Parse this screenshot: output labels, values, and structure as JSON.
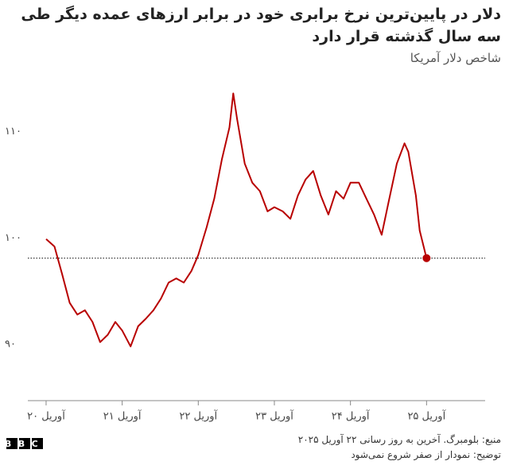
{
  "chart_data": {
    "type": "line",
    "title": "دلار در پایین‌ترین نرخ برابری خود در برابر ارزهای عمده دیگر طی سه سال گذشته قرار دارد",
    "subtitle": "شاخص دلار آمریکا",
    "source": "منبع: بلومبرگ. آخرین به روز رسانی ۲۲ آوریل ۲۰۲۵",
    "note": "توضیح: نمودار از صفر شروع نمی‌شود",
    "logo": "BBC",
    "x": [
      2020.29,
      2020.4,
      2020.5,
      2020.6,
      2020.7,
      2020.8,
      2020.9,
      2021.0,
      2021.1,
      2021.2,
      2021.29,
      2021.4,
      2021.5,
      2021.6,
      2021.7,
      2021.8,
      2021.9,
      2022.0,
      2022.1,
      2022.2,
      2022.29,
      2022.4,
      2022.5,
      2022.6,
      2022.7,
      2022.75,
      2022.8,
      2022.9,
      2023.0,
      2023.1,
      2023.2,
      2023.29,
      2023.4,
      2023.5,
      2023.6,
      2023.7,
      2023.8,
      2023.9,
      2024.0,
      2024.1,
      2024.2,
      2024.29,
      2024.4,
      2024.5,
      2024.6,
      2024.7,
      2024.8,
      2024.9,
      2025.0,
      2025.05,
      2025.15,
      2025.2,
      2025.29
    ],
    "series": [
      {
        "name": "شاخص دلار آمریکا",
        "color": "#b80000",
        "values": [
          100.2,
          99.5,
          96.9,
          94.2,
          93.1,
          93.5,
          92.4,
          90.5,
          91.2,
          92.4,
          91.6,
          90.1,
          92.0,
          92.7,
          93.5,
          94.6,
          96.1,
          96.5,
          96.1,
          97.2,
          98.7,
          101.3,
          104.0,
          107.7,
          110.7,
          113.9,
          111.5,
          107.3,
          105.5,
          104.7,
          102.8,
          103.2,
          102.8,
          102.1,
          104.3,
          105.8,
          106.6,
          104.3,
          102.5,
          104.7,
          104.0,
          105.5,
          105.5,
          104.0,
          102.5,
          100.6,
          104.0,
          107.3,
          109.2,
          108.4,
          104.3,
          101.0,
          98.4
        ]
      }
    ],
    "xlim": [
      2020.05,
      2026.06
    ],
    "xticks": [
      {
        "value": 2020.29,
        "label": "آوریل ۲۰"
      },
      {
        "value": 2021.29,
        "label": "آوریل ۲۱"
      },
      {
        "value": 2022.29,
        "label": "آوریل ۲۲"
      },
      {
        "value": 2023.29,
        "label": "آوریل ۲۳"
      },
      {
        "value": 2024.29,
        "label": "آوریل ۲۴"
      },
      {
        "value": 2025.29,
        "label": "آوریل ۲۵"
      }
    ],
    "ylim": [
      85,
      117
    ],
    "yticks": [
      {
        "value": 90,
        "label": "۹۰"
      },
      {
        "value": 100,
        "label": "۱۰۰"
      },
      {
        "value": 110,
        "label": "۱۱۰"
      }
    ],
    "grid": false
  }
}
